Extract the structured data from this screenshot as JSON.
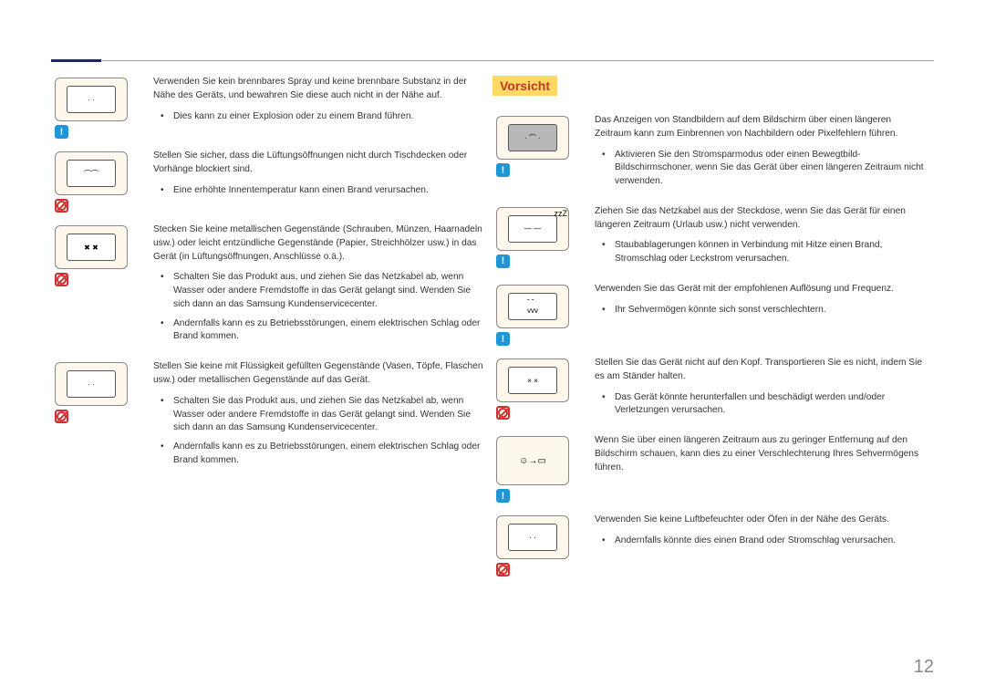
{
  "page_number": "12",
  "left_column": [
    {
      "badge": "info",
      "icon_desc": "spray-cans-near-monitor",
      "intro": "Verwenden Sie kein brennbares Spray und keine brennbare Substanz in der Nähe des Geräts, und bewahren Sie diese auch nicht in der Nähe auf.",
      "bullets": [
        "Dies kann zu einer Explosion oder zu einem Brand führen."
      ]
    },
    {
      "badge": "prohibit",
      "icon_desc": "cloth-blocking-vents",
      "intro": "Stellen Sie sicher, dass die Lüftungsöffnungen nicht durch Tischdecken oder Vorhänge blockiert sind.",
      "bullets": [
        "Eine erhöhte Innentemperatur kann einen Brand verursachen."
      ]
    },
    {
      "badge": "prohibit",
      "icon_desc": "metal-objects-in-monitor",
      "intro": "Stecken Sie keine metallischen Gegenstände (Schrauben, Münzen, Haarnadeln usw.) oder leicht entzündliche Gegenstände (Papier, Streichhölzer usw.) in das Gerät (in Lüftungsöffnungen, Anschlüsse o.ä.).",
      "bullets": [
        "Schalten Sie das Produkt aus, und ziehen Sie das Netzkabel ab, wenn Wasser oder andere Fremdstoffe in das Gerät gelangt sind. Wenden Sie sich dann an das Samsung Kundenservicecenter.",
        "Andernfalls kann es zu Betriebsstörungen, einem elektrischen Schlag oder Brand kommen."
      ]
    },
    {
      "badge": "prohibit",
      "icon_desc": "vase-on-monitor",
      "intro": "Stellen Sie keine mit Flüssigkeit gefüllten Gegenstände (Vasen, Töpfe, Flaschen usw.) oder metallischen Gegenstände auf das Gerät.",
      "bullets": [
        "Schalten Sie das Produkt aus, und ziehen Sie das Netzkabel ab, wenn Wasser oder andere Fremdstoffe in das Gerät gelangt sind. Wenden Sie sich dann an das Samsung Kundenservicecenter.",
        "Andernfalls kann es zu Betriebsstörungen, einem elektrischen Schlag oder Brand kommen."
      ]
    }
  ],
  "caution_label": "Vorsicht",
  "right_column": [
    {
      "badge": "info",
      "icon_desc": "burn-in-screen",
      "intro": "Das Anzeigen von Standbildern auf dem Bildschirm über einen längeren Zeitraum kann zum Einbrennen von Nachbildern oder Pixelfehlern führen.",
      "bullets": [
        "Aktivieren Sie den Stromsparmodus oder einen Bewegtbild-Bildschirmschoner, wenn Sie das Gerät über einen längeren Zeitraum nicht verwenden."
      ]
    },
    {
      "badge": "info",
      "icon_desc": "unplug-sleep",
      "intro": "Ziehen Sie das Netzkabel aus der Steckdose, wenn Sie das Gerät für einen längeren Zeitraum (Urlaub usw.) nicht verwenden.",
      "bullets": [
        "Staubablagerungen können in Verbindung mit Hitze einen Brand, Stromschlag oder Leckstrom verursachen."
      ]
    },
    {
      "badge": "info",
      "icon_desc": "resolution-frequency",
      "intro": "Verwenden Sie das Gerät mit der empfohlenen Auflösung und Frequenz.",
      "bullets": [
        "Ihr Sehvermögen könnte sich sonst verschlechtern."
      ]
    },
    {
      "badge": "prohibit",
      "icon_desc": "upside-down-monitor",
      "intro": "Stellen Sie das Gerät nicht auf den Kopf. Transportieren Sie es nicht, indem Sie es am Ständer halten.",
      "bullets": [
        "Das Gerät könnte herunterfallen und beschädigt werden und/oder Verletzungen verursachen."
      ]
    },
    {
      "badge": "info",
      "icon_desc": "eye-proximity",
      "intro": "Wenn Sie über einen längeren Zeitraum aus zu geringer Entfernung auf den Bildschirm schauen, kann dies zu einer Verschlechterung Ihres Sehvermögens führen.",
      "bullets": []
    },
    {
      "badge": "prohibit",
      "icon_desc": "humidifier-oven",
      "intro": "Verwenden Sie keine Luftbefeuchter oder Öfen in der Nähe des Geräts.",
      "bullets": [
        "Andernfalls könnte dies einen Brand oder Stromschlag verursachen."
      ]
    }
  ]
}
